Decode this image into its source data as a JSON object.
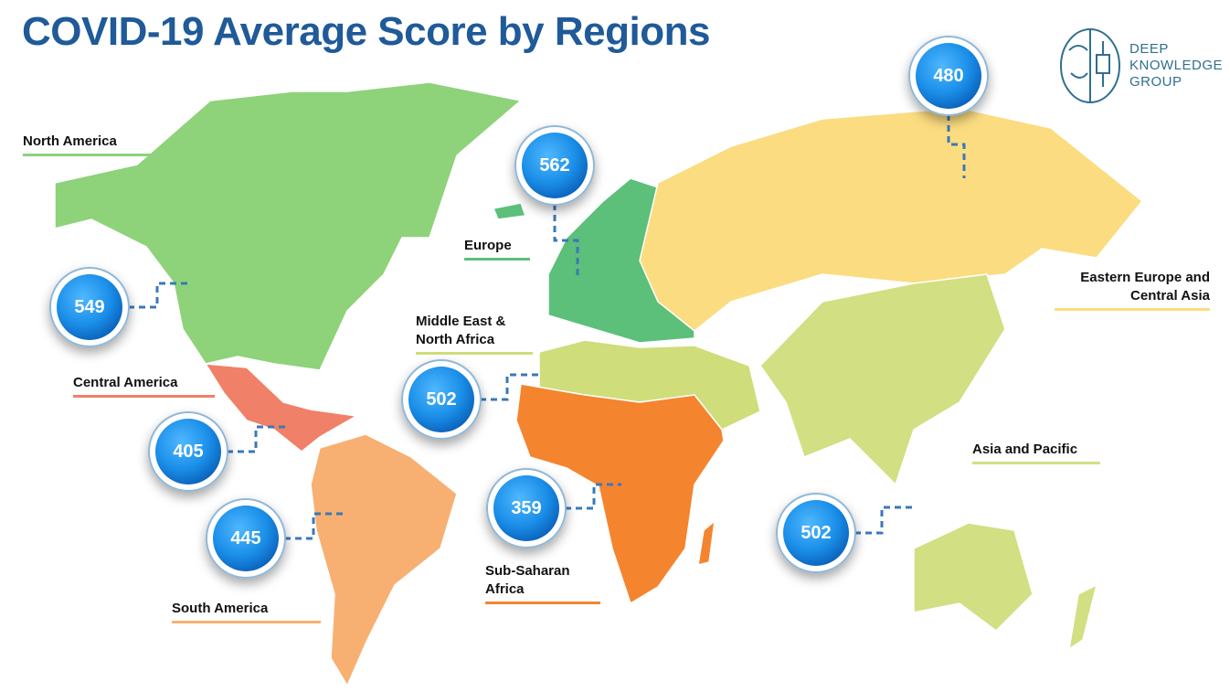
{
  "header": {
    "title": "COVID-19 Average Score by Regions"
  },
  "logo": {
    "lines": [
      "DEEP",
      "KNOWLEDGE",
      "GROUP"
    ]
  },
  "regions": [
    {
      "name": "North America",
      "score": 549,
      "color": "#8ed27a"
    },
    {
      "name": "Europe",
      "score": 562,
      "color": "#5cbf7a"
    },
    {
      "name": "Eastern Europe and Central Asia",
      "score": 480,
      "color": "#fbdc80"
    },
    {
      "name": "Middle East & North Africa",
      "score": 502,
      "color": "#cfdd7a"
    },
    {
      "name": "Central America",
      "score": 405,
      "color": "#f08068"
    },
    {
      "name": "South America",
      "score": 445,
      "color": "#f7b072"
    },
    {
      "name": "Sub-Saharan Africa",
      "score": 359,
      "color": "#f5842f"
    },
    {
      "name": "Asia and Pacific",
      "score": 502,
      "color": "#d2df82"
    }
  ]
}
